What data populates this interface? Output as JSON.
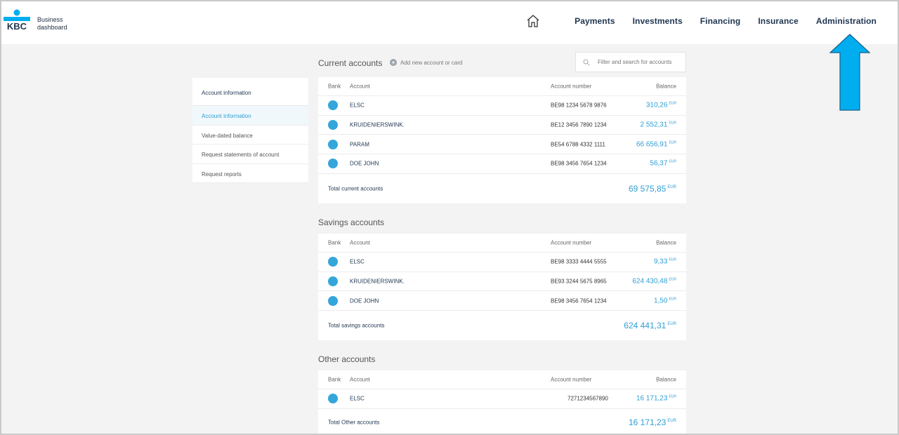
{
  "brand": {
    "logo_text": "KBC",
    "line1": "Business",
    "line2": "dashboard",
    "color": "#00aeef"
  },
  "nav": {
    "home": "home-icon",
    "items": [
      "Payments",
      "Investments",
      "Financing",
      "Insurance",
      "Administration"
    ]
  },
  "sidebar": {
    "title": "Account information",
    "items": [
      "Account information",
      "Value-dated balance",
      "Request statements of account",
      "Request reports"
    ]
  },
  "current": {
    "title": "Current accounts",
    "add_label": "Add new account or card",
    "search_placeholder": "Filter and search for accounts",
    "headers": {
      "bank": "Bank",
      "account": "Account",
      "number": "Account number",
      "balance": "Balance"
    },
    "rows": [
      {
        "name": "ELSC",
        "number": "BE98 1234 5678 9876",
        "balance": "310,26",
        "cur": "EUR"
      },
      {
        "name": "KRUIDENIERSWINK.",
        "number": "BE12 3456 7890 1234",
        "balance": "2 552,31",
        "cur": "EUR"
      },
      {
        "name": "PARAM",
        "number": "BE54 6788 4332 1111",
        "balance": "66 656,91",
        "cur": "EUR"
      },
      {
        "name": "DOE JOHN",
        "number": "BE98 3456 7654 1234",
        "balance": "56,37",
        "cur": "EUR"
      }
    ],
    "total_label": "Total current accounts",
    "total": "69 575,85",
    "total_cur": "EUR"
  },
  "savings": {
    "title": "Savings accounts",
    "headers": {
      "bank": "Bank",
      "account": "Account",
      "number": "Account number",
      "balance": "Balance"
    },
    "rows": [
      {
        "name": "ELSC",
        "number": "BE98 3333 4444 5555",
        "balance": "9,33",
        "cur": "EUR"
      },
      {
        "name": "KRUIDENIERSWINK.",
        "number": "BE93 3244 5675 8965",
        "balance": "624 430,48",
        "cur": "EUR"
      },
      {
        "name": "DOE JOHN",
        "number": "BE98 3456 7654 1234",
        "balance": "1,50",
        "cur": "EUR"
      }
    ],
    "total_label": "Total savings accounts",
    "total": "624 441,31",
    "total_cur": "EUR"
  },
  "other": {
    "title": "Other accounts",
    "headers": {
      "bank": "Bank",
      "account": "Account",
      "number": "Account number",
      "balance": "Balance"
    },
    "rows": [
      {
        "name": "ELSC",
        "number": "7271234567890",
        "balance": "16 171,23",
        "cur": "EUR"
      }
    ],
    "total_label": "Total Other accounts",
    "total": "16 171,23",
    "total_cur": "EUR"
  },
  "accent_color": "#2f9fd6",
  "arrow_color": "#00aeef"
}
